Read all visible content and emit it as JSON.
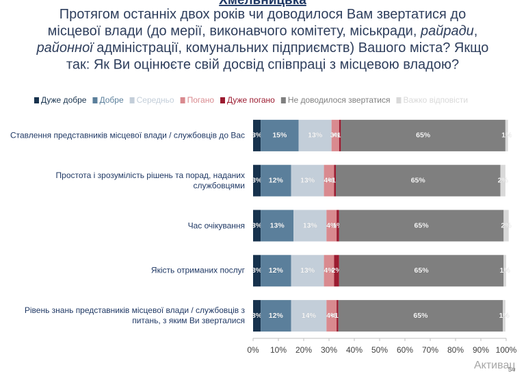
{
  "header": "Хмельницька",
  "chart_data": {
    "type": "bar",
    "orientation": "horizontal",
    "stacked": true,
    "title_lines": [
      [
        {
          "text": "Протягом останніх двох років чи доводилося Вам звертатися до",
          "italic": false
        }
      ],
      [
        {
          "text": "місцевої влади (до мерії, виконавчого комітету, міськради, ",
          "italic": false
        },
        {
          "text": "райради",
          "italic": true
        },
        {
          "text": ",",
          "italic": false
        }
      ],
      [
        {
          "text": "районної",
          "italic": true
        },
        {
          "text": " адміністрації, комунальних підприємств) Вашого міста? Якщо",
          "italic": false
        }
      ],
      [
        {
          "text": "так: Як Ви оцінюєте свій досвід співпраці з місцевою владою?",
          "italic": false
        }
      ]
    ],
    "categories": [
      "Ставлення представників місцевої влади / службовців до Вас",
      "Простота і зрозумілість рішень та порад, наданих службовцями",
      "Час очікування",
      "Якість отриманих послуг",
      "Рівень знань представників місцевої влади / службовців з питань, з яким Ви зверталися"
    ],
    "series": [
      {
        "name": "Дуже добре",
        "color": "#17324d",
        "values": [
          3,
          3,
          3,
          3,
          3
        ],
        "value_labels": [
          "3%",
          "3%",
          "3%",
          "3%",
          "3%"
        ]
      },
      {
        "name": "Добре",
        "color": "#5b7f9b",
        "values": [
          15,
          12,
          13,
          12,
          12
        ],
        "value_labels": [
          "15%",
          "12%",
          "13%",
          "12%",
          "12%"
        ]
      },
      {
        "name": "Середньо",
        "color": "#c3ced9",
        "values": [
          13,
          13,
          13,
          13,
          14
        ],
        "value_labels": [
          "13%",
          "13%",
          "13%",
          "13%",
          "14%"
        ]
      },
      {
        "name": "Погано",
        "color": "#d98a8f",
        "values": [
          3,
          4,
          4,
          4,
          4
        ],
        "value_labels": [
          "3%",
          "4%",
          "4%",
          "4%",
          "4%"
        ]
      },
      {
        "name": "Дуже погано",
        "color": "#9b1b30",
        "values": [
          0.7,
          0.7,
          1,
          2,
          0.7
        ],
        "value_labels": [
          "<1%",
          "<1%",
          "1%",
          "2%",
          "<1%"
        ]
      },
      {
        "name": "Не доводилося звертатися",
        "color": "#7f7f7f",
        "values": [
          65,
          65,
          65,
          65,
          65
        ],
        "value_labels": [
          "65%",
          "65%",
          "65%",
          "65%",
          "65%"
        ]
      },
      {
        "name": "Важко відповісти",
        "color": "#d9d9d9",
        "values": [
          1,
          2,
          2,
          1,
          1
        ],
        "value_labels": [
          "1%",
          "2%",
          "2%",
          "1%",
          "1%"
        ]
      }
    ],
    "xlim": [
      0,
      100
    ],
    "xticks": [
      {
        "value": 0,
        "label": "0%"
      },
      {
        "value": 10,
        "label": "10%"
      },
      {
        "value": 20,
        "label": "20%"
      },
      {
        "value": 30,
        "label": "30%"
      },
      {
        "value": 40,
        "label": "40%"
      },
      {
        "value": 50,
        "label": "50%"
      },
      {
        "value": 60,
        "label": "60%"
      },
      {
        "value": 70,
        "label": "70%"
      },
      {
        "value": 80,
        "label": "80%"
      },
      {
        "value": 90,
        "label": "90%"
      },
      {
        "value": 100,
        "label": "100%"
      }
    ],
    "legend": "top"
  },
  "page_number": "54",
  "watermark": "Активац"
}
